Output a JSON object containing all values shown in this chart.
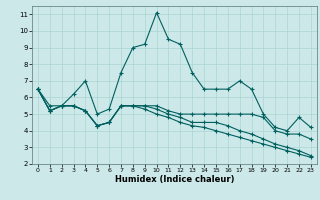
{
  "xlabel": "Humidex (Indice chaleur)",
  "bg_color": "#cce8e8",
  "grid_color": "#aad4d4",
  "line_color": "#005f5f",
  "xlim": [
    -0.5,
    23.5
  ],
  "ylim": [
    2,
    11.5
  ],
  "xticks": [
    0,
    1,
    2,
    3,
    4,
    5,
    6,
    7,
    8,
    9,
    10,
    11,
    12,
    13,
    14,
    15,
    16,
    17,
    18,
    19,
    20,
    21,
    22,
    23
  ],
  "yticks": [
    2,
    3,
    4,
    5,
    6,
    7,
    8,
    9,
    10,
    11
  ],
  "s1_x": [
    0,
    1,
    2,
    3,
    4,
    5,
    6,
    7,
    8,
    9,
    10,
    11,
    12,
    13,
    14,
    15,
    16,
    17,
    18,
    19,
    20,
    21,
    22,
    23
  ],
  "s1_y": [
    6.5,
    5.5,
    5.5,
    6.2,
    7.0,
    5.0,
    5.3,
    7.5,
    9.0,
    9.2,
    11.1,
    9.5,
    9.2,
    7.5,
    6.5,
    6.5,
    6.5,
    7.0,
    6.5,
    5.0,
    4.2,
    4.0,
    4.8,
    4.2
  ],
  "s2_x": [
    0,
    1,
    2,
    3,
    4,
    5,
    6,
    7,
    8,
    9,
    10,
    11,
    12,
    13,
    14,
    15,
    16,
    17,
    18,
    19,
    20,
    21,
    22,
    23
  ],
  "s2_y": [
    6.5,
    5.2,
    5.5,
    5.5,
    5.2,
    4.3,
    4.5,
    5.5,
    5.5,
    5.5,
    5.5,
    5.2,
    5.0,
    5.0,
    5.0,
    5.0,
    5.0,
    5.0,
    5.0,
    4.8,
    4.0,
    3.8,
    3.8,
    3.5
  ],
  "s3_x": [
    0,
    1,
    2,
    3,
    4,
    5,
    6,
    7,
    8,
    9,
    10,
    11,
    12,
    13,
    14,
    15,
    16,
    17,
    18,
    19,
    20,
    21,
    22,
    23
  ],
  "s3_y": [
    6.5,
    5.2,
    5.5,
    5.5,
    5.2,
    4.3,
    4.5,
    5.5,
    5.5,
    5.5,
    5.3,
    5.0,
    4.8,
    4.5,
    4.5,
    4.5,
    4.3,
    4.0,
    3.8,
    3.5,
    3.2,
    3.0,
    2.8,
    2.5
  ],
  "s4_x": [
    0,
    1,
    2,
    3,
    4,
    5,
    6,
    7,
    8,
    9,
    10,
    11,
    12,
    13,
    14,
    15,
    16,
    17,
    18,
    19,
    20,
    21,
    22,
    23
  ],
  "s4_y": [
    6.5,
    5.2,
    5.5,
    5.5,
    5.2,
    4.3,
    4.5,
    5.5,
    5.5,
    5.3,
    5.0,
    4.8,
    4.5,
    4.3,
    4.2,
    4.0,
    3.8,
    3.6,
    3.4,
    3.2,
    3.0,
    2.8,
    2.6,
    2.4
  ]
}
